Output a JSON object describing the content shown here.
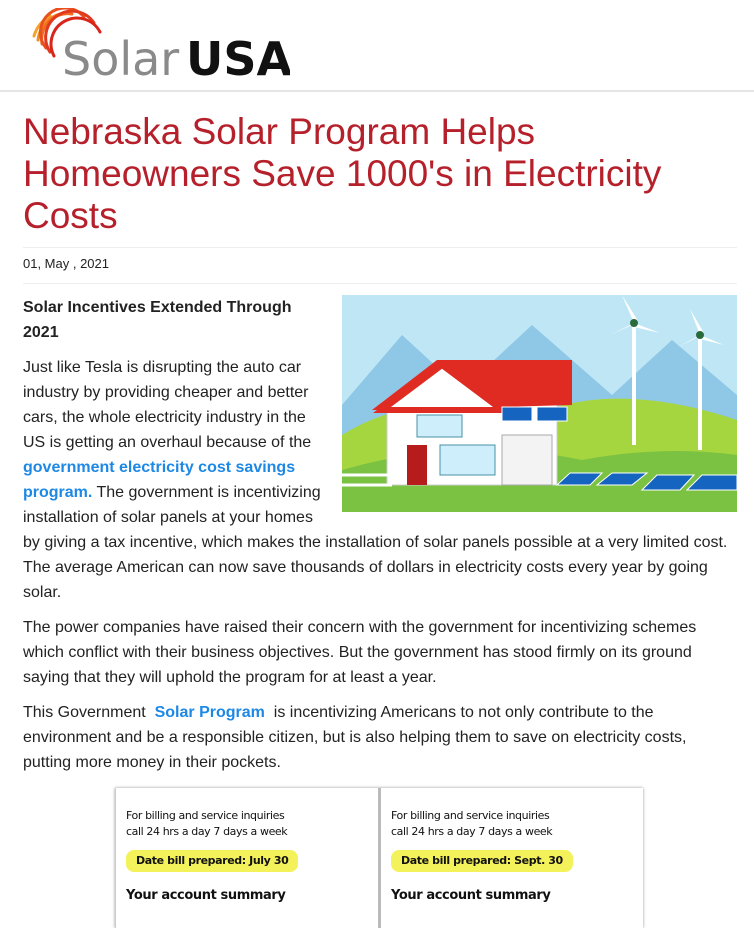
{
  "header": {
    "logo": {
      "part1": "Solar",
      "part2": "USA"
    }
  },
  "article": {
    "title": "Nebraska Solar Program Helps Homeowners Save 1000's in Electricity Costs",
    "date": "01, May , 2021",
    "subheading": "Solar Incentives Extended Through 2021",
    "paragraphs": [
      {
        "before": "Just like Tesla is disrupting the auto car industry by providing cheaper and better cars, the whole electricity industry in the US is getting an overhaul because of the",
        "link": "government electricity cost savings program.",
        "after": "The government is incentivizing installation of solar panels at your homes by giving a tax incentive, which makes the installation of solar panels possible at a very limited cost. The average American can now save thousands of dollars in electricity costs every year by going solar."
      },
      {
        "before": "The power companies have raised their concern with the government for incentivizing schemes which conflict with their business objectives. But the government has stood firmly on its ground saying that they will uphold the program for at least a year."
      },
      {
        "before": "This Government",
        "link": "Solar Program",
        "after": "is incentivizing Americans to not only contribute to the environment and be a responsible citizen, but is also helping them to save on electricity costs, putting more money in their pockets."
      }
    ],
    "bill": {
      "panels": [
        {
          "line1": "For billing and service inquiries",
          "line2": "call 24 hrs a day 7 days a week",
          "date": "Date bill prepared: July 30",
          "summary": "Your account summary"
        },
        {
          "line1": "For billing and service inquiries",
          "line2": "call 24 hrs a day 7 days a week",
          "date": "Date bill prepared: Sept. 30",
          "summary": "Your account summary"
        }
      ]
    }
  }
}
